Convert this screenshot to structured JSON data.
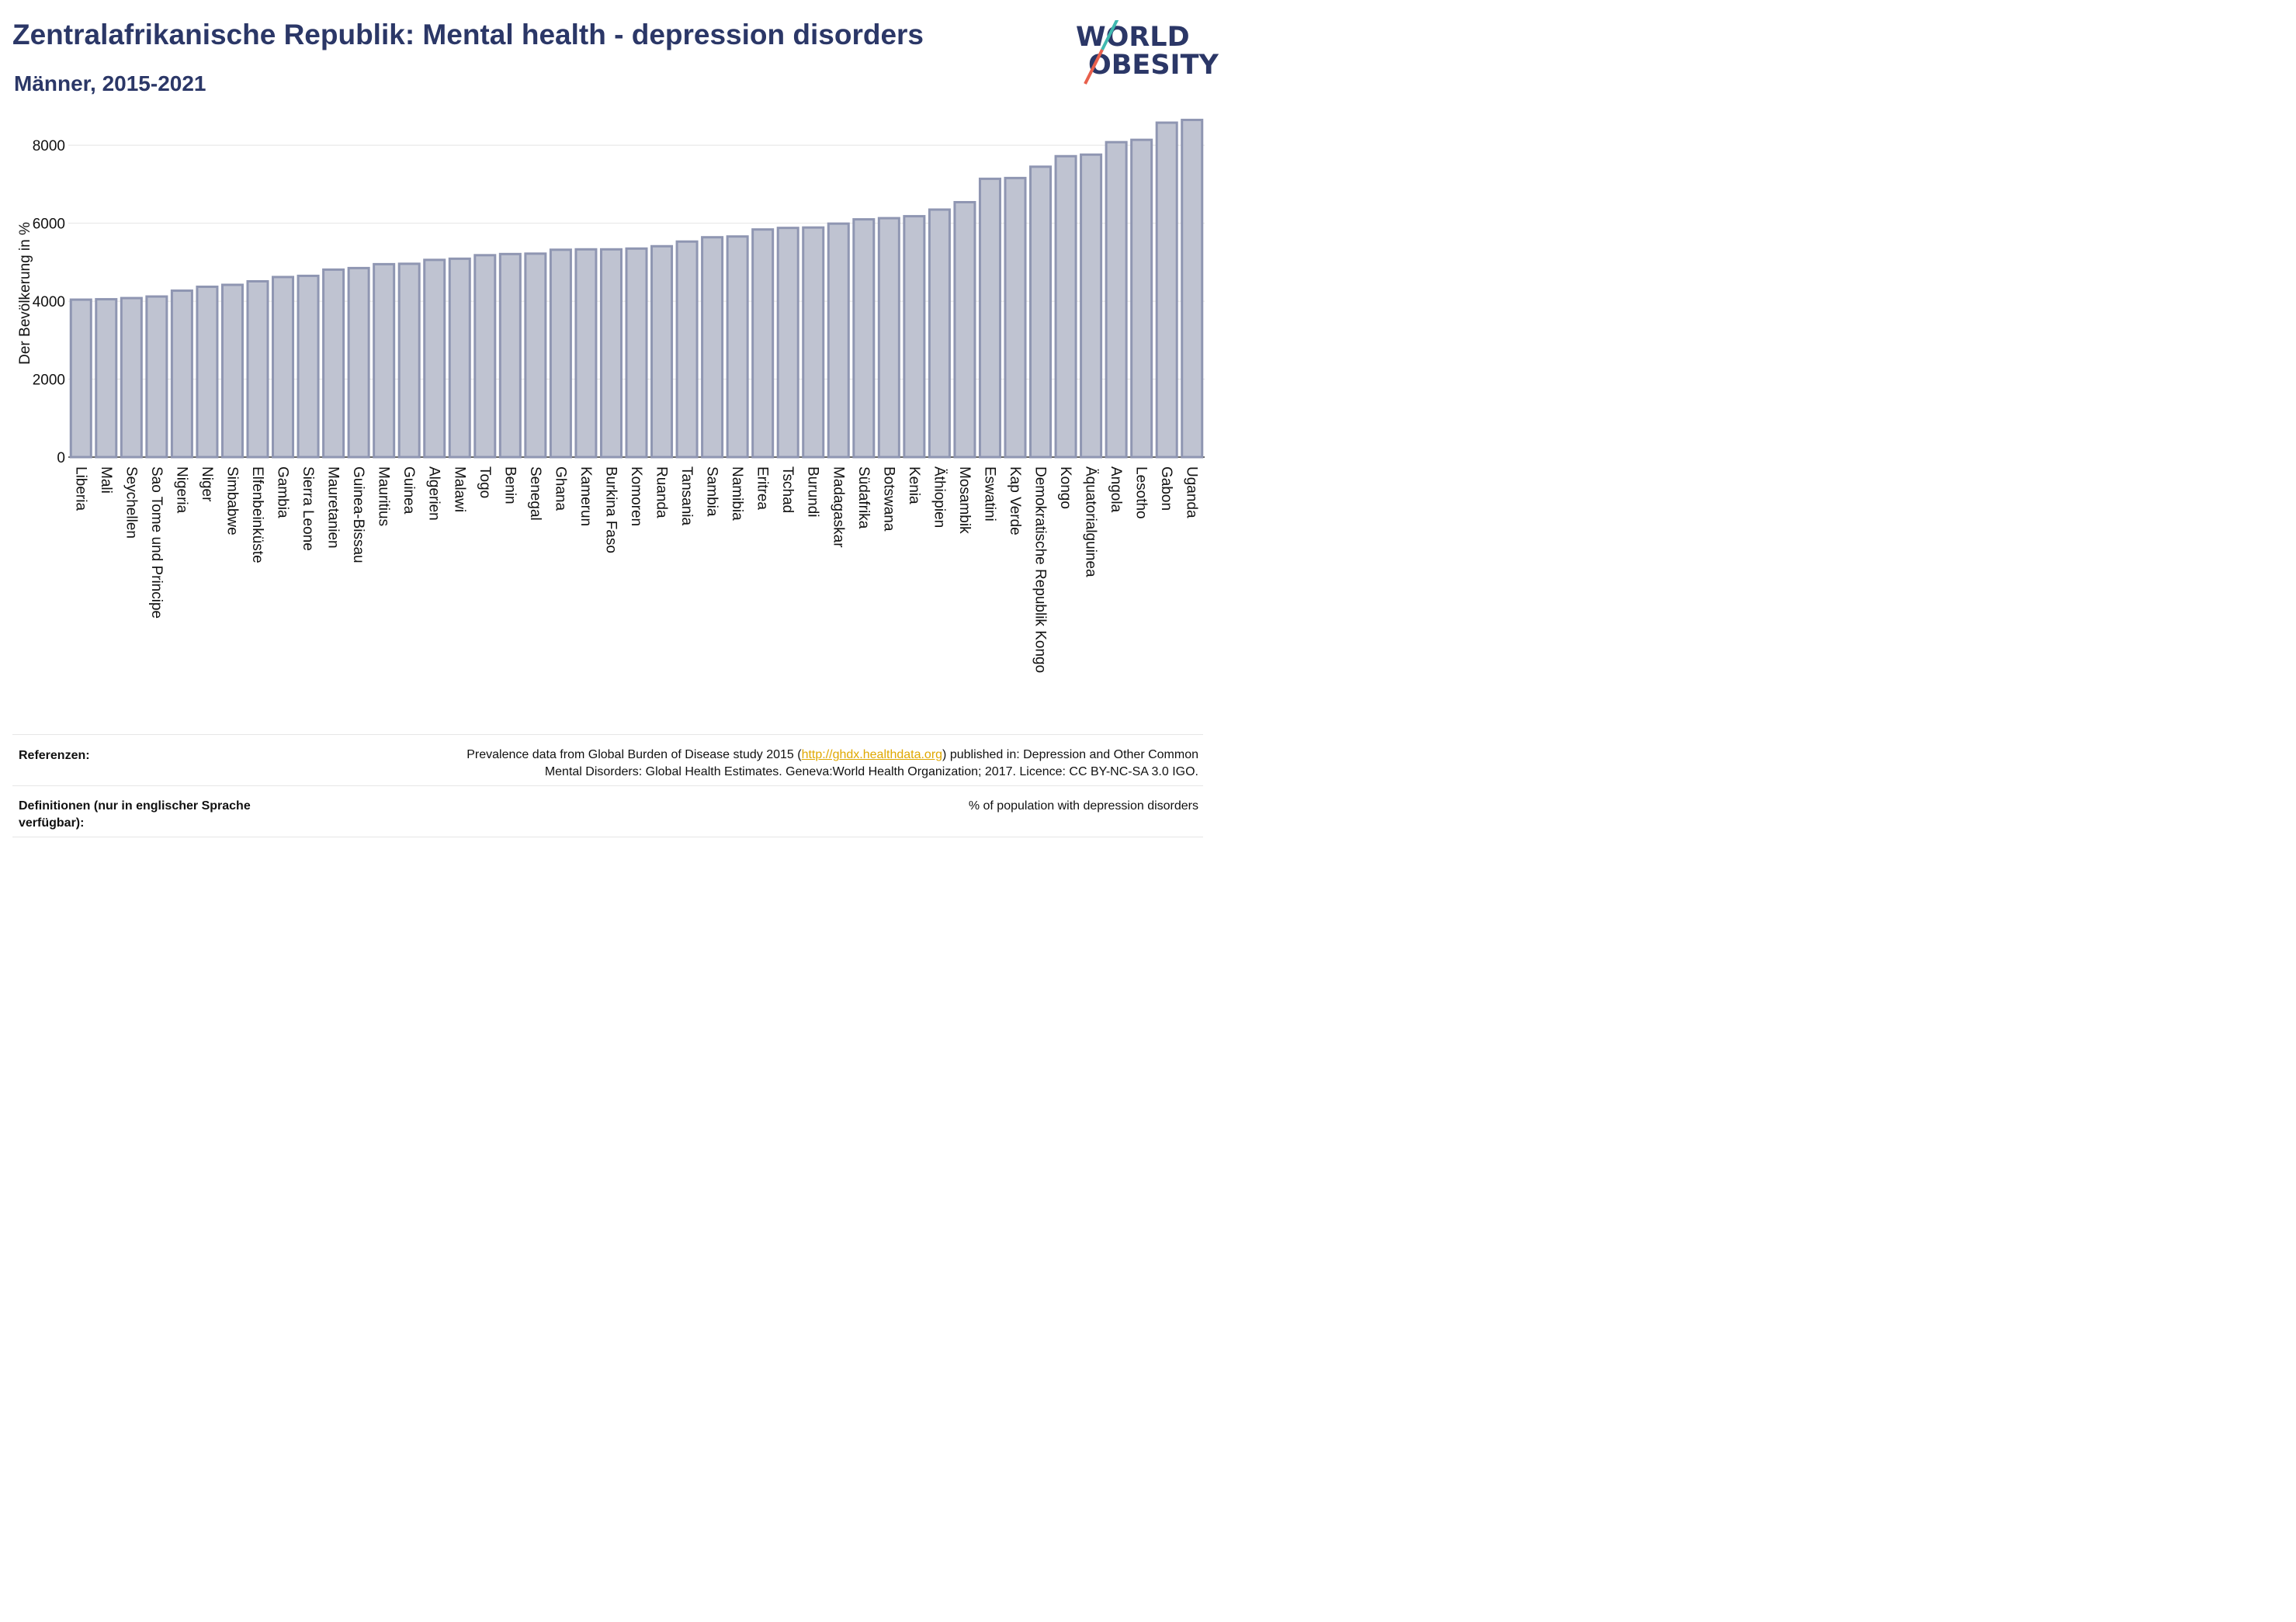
{
  "header": {
    "title": "Zentralafrikanische Republik: Mental health - depression disorders",
    "subtitle": "Männer, 2015-2021"
  },
  "logo": {
    "line1": "WORLD",
    "line2": "OBESITY"
  },
  "colors": {
    "title": "#2b3767",
    "bar_fill": "#bfc3d1",
    "bar_stroke": "#8f96b2",
    "link": "#e0a800",
    "logo_teal": "#3fb9b0",
    "logo_red": "#e8604c"
  },
  "chart_data": {
    "type": "bar",
    "ylabel": "Der Bevölkerung in %",
    "xlabel": "",
    "ylim": [
      0,
      8800
    ],
    "yticks": [
      0,
      2000,
      4000,
      6000,
      8000
    ],
    "grid": true,
    "categories": [
      "Liberia",
      "Mali",
      "Seychellen",
      "Sao Tome und Principe",
      "Nigeria",
      "Niger",
      "Simbabwe",
      "Elfenbeinküste",
      "Gambia",
      "Sierra Leone",
      "Mauretanien",
      "Guinea-Bissau",
      "Mauritius",
      "Guinea",
      "Algerien",
      "Malawi",
      "Togo",
      "Benin",
      "Senegal",
      "Ghana",
      "Kamerun",
      "Burkina Faso",
      "Komoren",
      "Ruanda",
      "Tansania",
      "Sambia",
      "Namibia",
      "Eritrea",
      "Tschad",
      "Burundi",
      "Madagaskar",
      "Südafrika",
      "Botswana",
      "Kenia",
      "Äthiopien",
      "Mosambik",
      "Eswatini",
      "Kap Verde",
      "Demokratische Republik Kongo",
      "Kongo",
      "Äquatorialguinea",
      "Angola",
      "Lesotho",
      "Gabon",
      "Uganda"
    ],
    "values": [
      4040,
      4050,
      4080,
      4120,
      4270,
      4370,
      4420,
      4510,
      4620,
      4650,
      4810,
      4850,
      4950,
      4960,
      5060,
      5090,
      5180,
      5210,
      5220,
      5320,
      5330,
      5330,
      5350,
      5410,
      5530,
      5640,
      5660,
      5840,
      5880,
      5890,
      5990,
      6100,
      6130,
      6180,
      6350,
      6540,
      7140,
      7160,
      7450,
      7720,
      7760,
      8080,
      8140,
      8580,
      8650
    ]
  },
  "footer": {
    "references_label": "Referenzen:",
    "references_pre": "Prevalence data from Global Burden of Disease study 2015 (",
    "references_link": "http://ghdx.healthdata.org",
    "references_post": ") published in: Depression and Other Common",
    "references_line2": "Mental Disorders: Global Health Estimates. Geneva:World Health Organization; 2017. Licence: CC BY-NC-SA 3.0 IGO.",
    "definitions_label": "Definitionen (nur in englischer Sprache verfügbar):",
    "definitions_value": "% of population with depression disorders"
  }
}
